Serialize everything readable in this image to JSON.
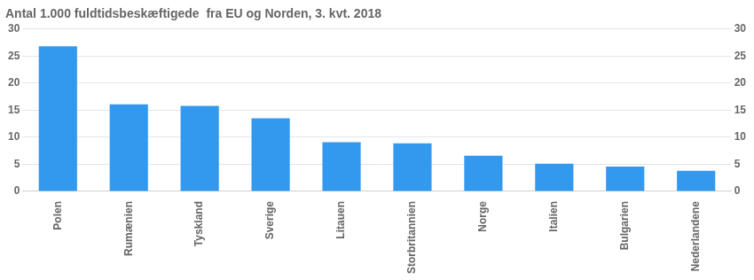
{
  "chart_data": {
    "type": "bar",
    "title": "Antal 1.000 fuldtidsbeskæftigede  fra EU og Norden, 3. kvt. 2018",
    "categories": [
      "Polen",
      "Rumænien",
      "Tyskland",
      "Sverige",
      "Litauen",
      "Storbritannien",
      "Norge",
      "Italien",
      "Bulgarien",
      "Nederlandene"
    ],
    "values": [
      26.8,
      16.1,
      15.8,
      13.5,
      9.1,
      8.9,
      6.6,
      5.1,
      4.6,
      3.8
    ],
    "color": "#3399EE",
    "ylim": [
      0,
      30
    ],
    "yticks": [
      0,
      5,
      10,
      15,
      20,
      25,
      30
    ],
    "y2lim": [
      0,
      30
    ],
    "y2ticks": [
      0,
      5,
      10,
      15,
      20,
      25,
      30
    ],
    "grid": true
  }
}
